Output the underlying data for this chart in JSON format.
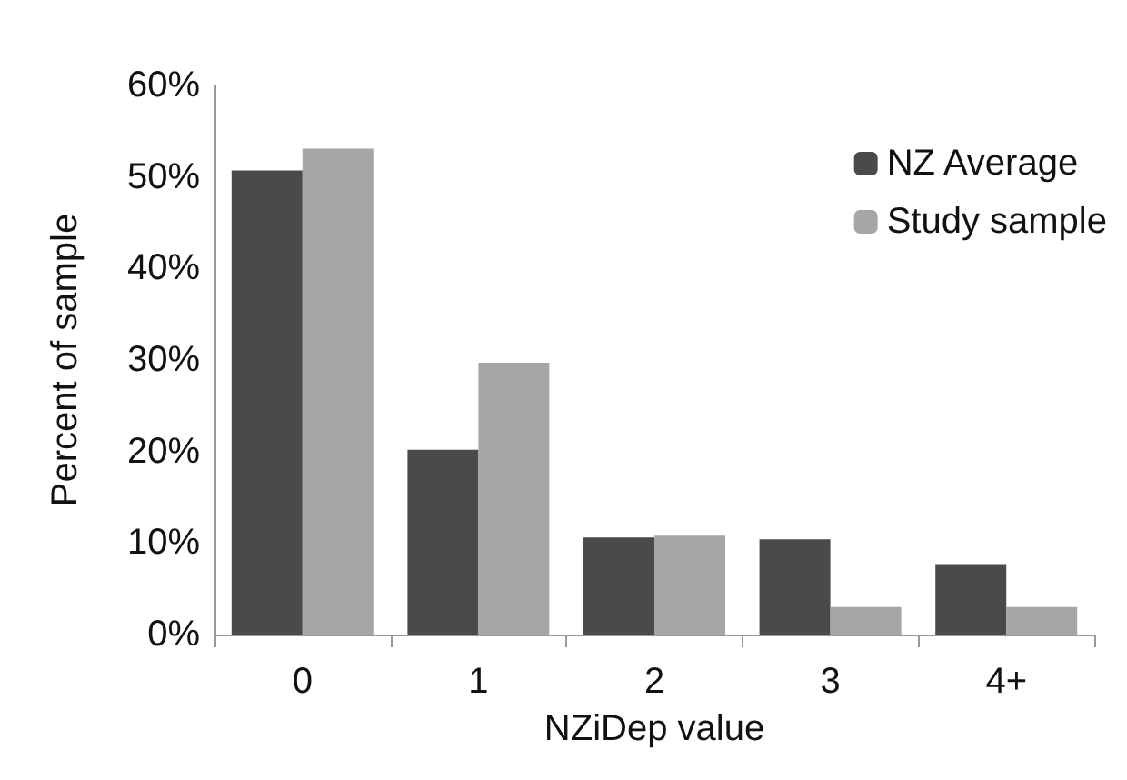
{
  "chart_data": {
    "type": "bar",
    "xlabel": "NZiDep value",
    "ylabel": "Percent of sample",
    "categories": [
      "0",
      "1",
      "2",
      "3",
      "4+"
    ],
    "series": [
      {
        "name": "NZ Average",
        "color": "#4a4a4a",
        "values": [
          50.7,
          20.2,
          10.6,
          10.4,
          7.7
        ]
      },
      {
        "name": "Study sample",
        "color": "#a6a6a6",
        "values": [
          53.1,
          29.7,
          10.8,
          3.0,
          3.0
        ]
      }
    ],
    "ylim": [
      0,
      60
    ],
    "yticks": [
      {
        "value": 0,
        "label": "0%"
      },
      {
        "value": 10,
        "label": "10%"
      },
      {
        "value": 20,
        "label": "20%"
      },
      {
        "value": 30,
        "label": "30%"
      },
      {
        "value": 40,
        "label": "40%"
      },
      {
        "value": 50,
        "label": "50%"
      },
      {
        "value": 60,
        "label": "60%"
      }
    ],
    "grid": false,
    "legend": "top right"
  }
}
